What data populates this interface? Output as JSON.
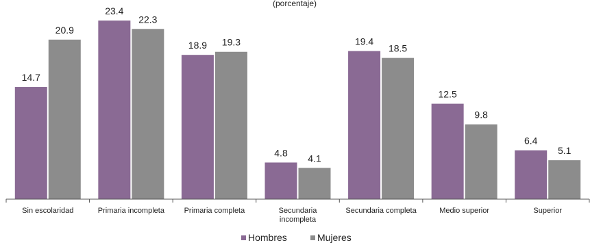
{
  "top_fragment": "(porcentaje)",
  "chart_data": {
    "type": "bar",
    "categories": [
      [
        "Sin escolaridad"
      ],
      [
        "Primaria incompleta"
      ],
      [
        "Primaria completa"
      ],
      [
        "Secundaria",
        "incompleta"
      ],
      [
        "Secundaria completa"
      ],
      [
        "Medio superior"
      ],
      [
        "Superior"
      ]
    ],
    "series": [
      {
        "name": "Hombres",
        "values": [
          14.7,
          23.4,
          18.9,
          4.8,
          19.4,
          12.5,
          6.4
        ],
        "color": "#8a6a94"
      },
      {
        "name": "Mujeres",
        "values": [
          20.9,
          22.3,
          19.3,
          4.1,
          18.5,
          9.8,
          5.1
        ],
        "color": "#8c8c8c"
      }
    ],
    "value_labels": [
      [
        "14.7",
        "23.4",
        "18.9",
        "4.8",
        "19.4",
        "12.5",
        "6.4"
      ],
      [
        "20.9",
        "22.3",
        "19.3",
        "4.1",
        "18.5",
        "9.8",
        "5.1"
      ]
    ],
    "ylim": [
      0,
      25
    ],
    "grid": false,
    "legend_position": "bottom"
  }
}
